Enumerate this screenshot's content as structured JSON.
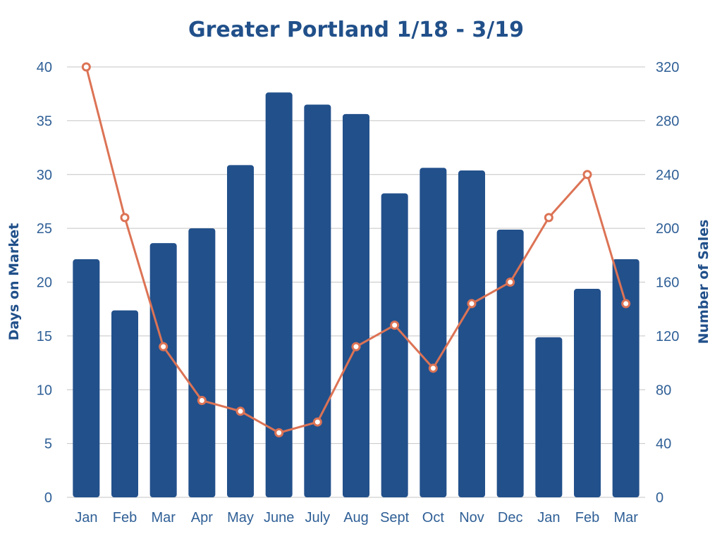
{
  "chart_data": {
    "type": "bar+line",
    "title": "Greater Portland 1/18 - 3/19",
    "categories": [
      "Jan",
      "Feb",
      "Mar",
      "Apr",
      "May",
      "June",
      "July",
      "Aug",
      "Sept",
      "Oct",
      "Nov",
      "Dec",
      "Jan",
      "Feb",
      "Mar"
    ],
    "series": [
      {
        "name": "Number of Sales",
        "type": "bar",
        "axis": "right",
        "color": "#22508b",
        "values": [
          177,
          139,
          189,
          200,
          247,
          301,
          292,
          285,
          226,
          245,
          243,
          199,
          119,
          155,
          177
        ]
      },
      {
        "name": "Days on Market",
        "type": "line",
        "axis": "left",
        "color": "#dc7355",
        "values": [
          40,
          26,
          14,
          9,
          8,
          6,
          7,
          14,
          16,
          12,
          18,
          20,
          26,
          30,
          18
        ]
      }
    ],
    "ylabel_left": "Days on Market",
    "ylabel_right": "Number of Sales",
    "ylim_left": [
      0,
      40
    ],
    "ylim_right": [
      0,
      320
    ],
    "yticks_left": [
      "0",
      "5",
      "10",
      "15",
      "20",
      "25",
      "30",
      "35",
      "40"
    ],
    "yticks_right": [
      "0",
      "40",
      "80",
      "120",
      "160",
      "200",
      "240",
      "280",
      "320"
    ],
    "grid": true
  }
}
